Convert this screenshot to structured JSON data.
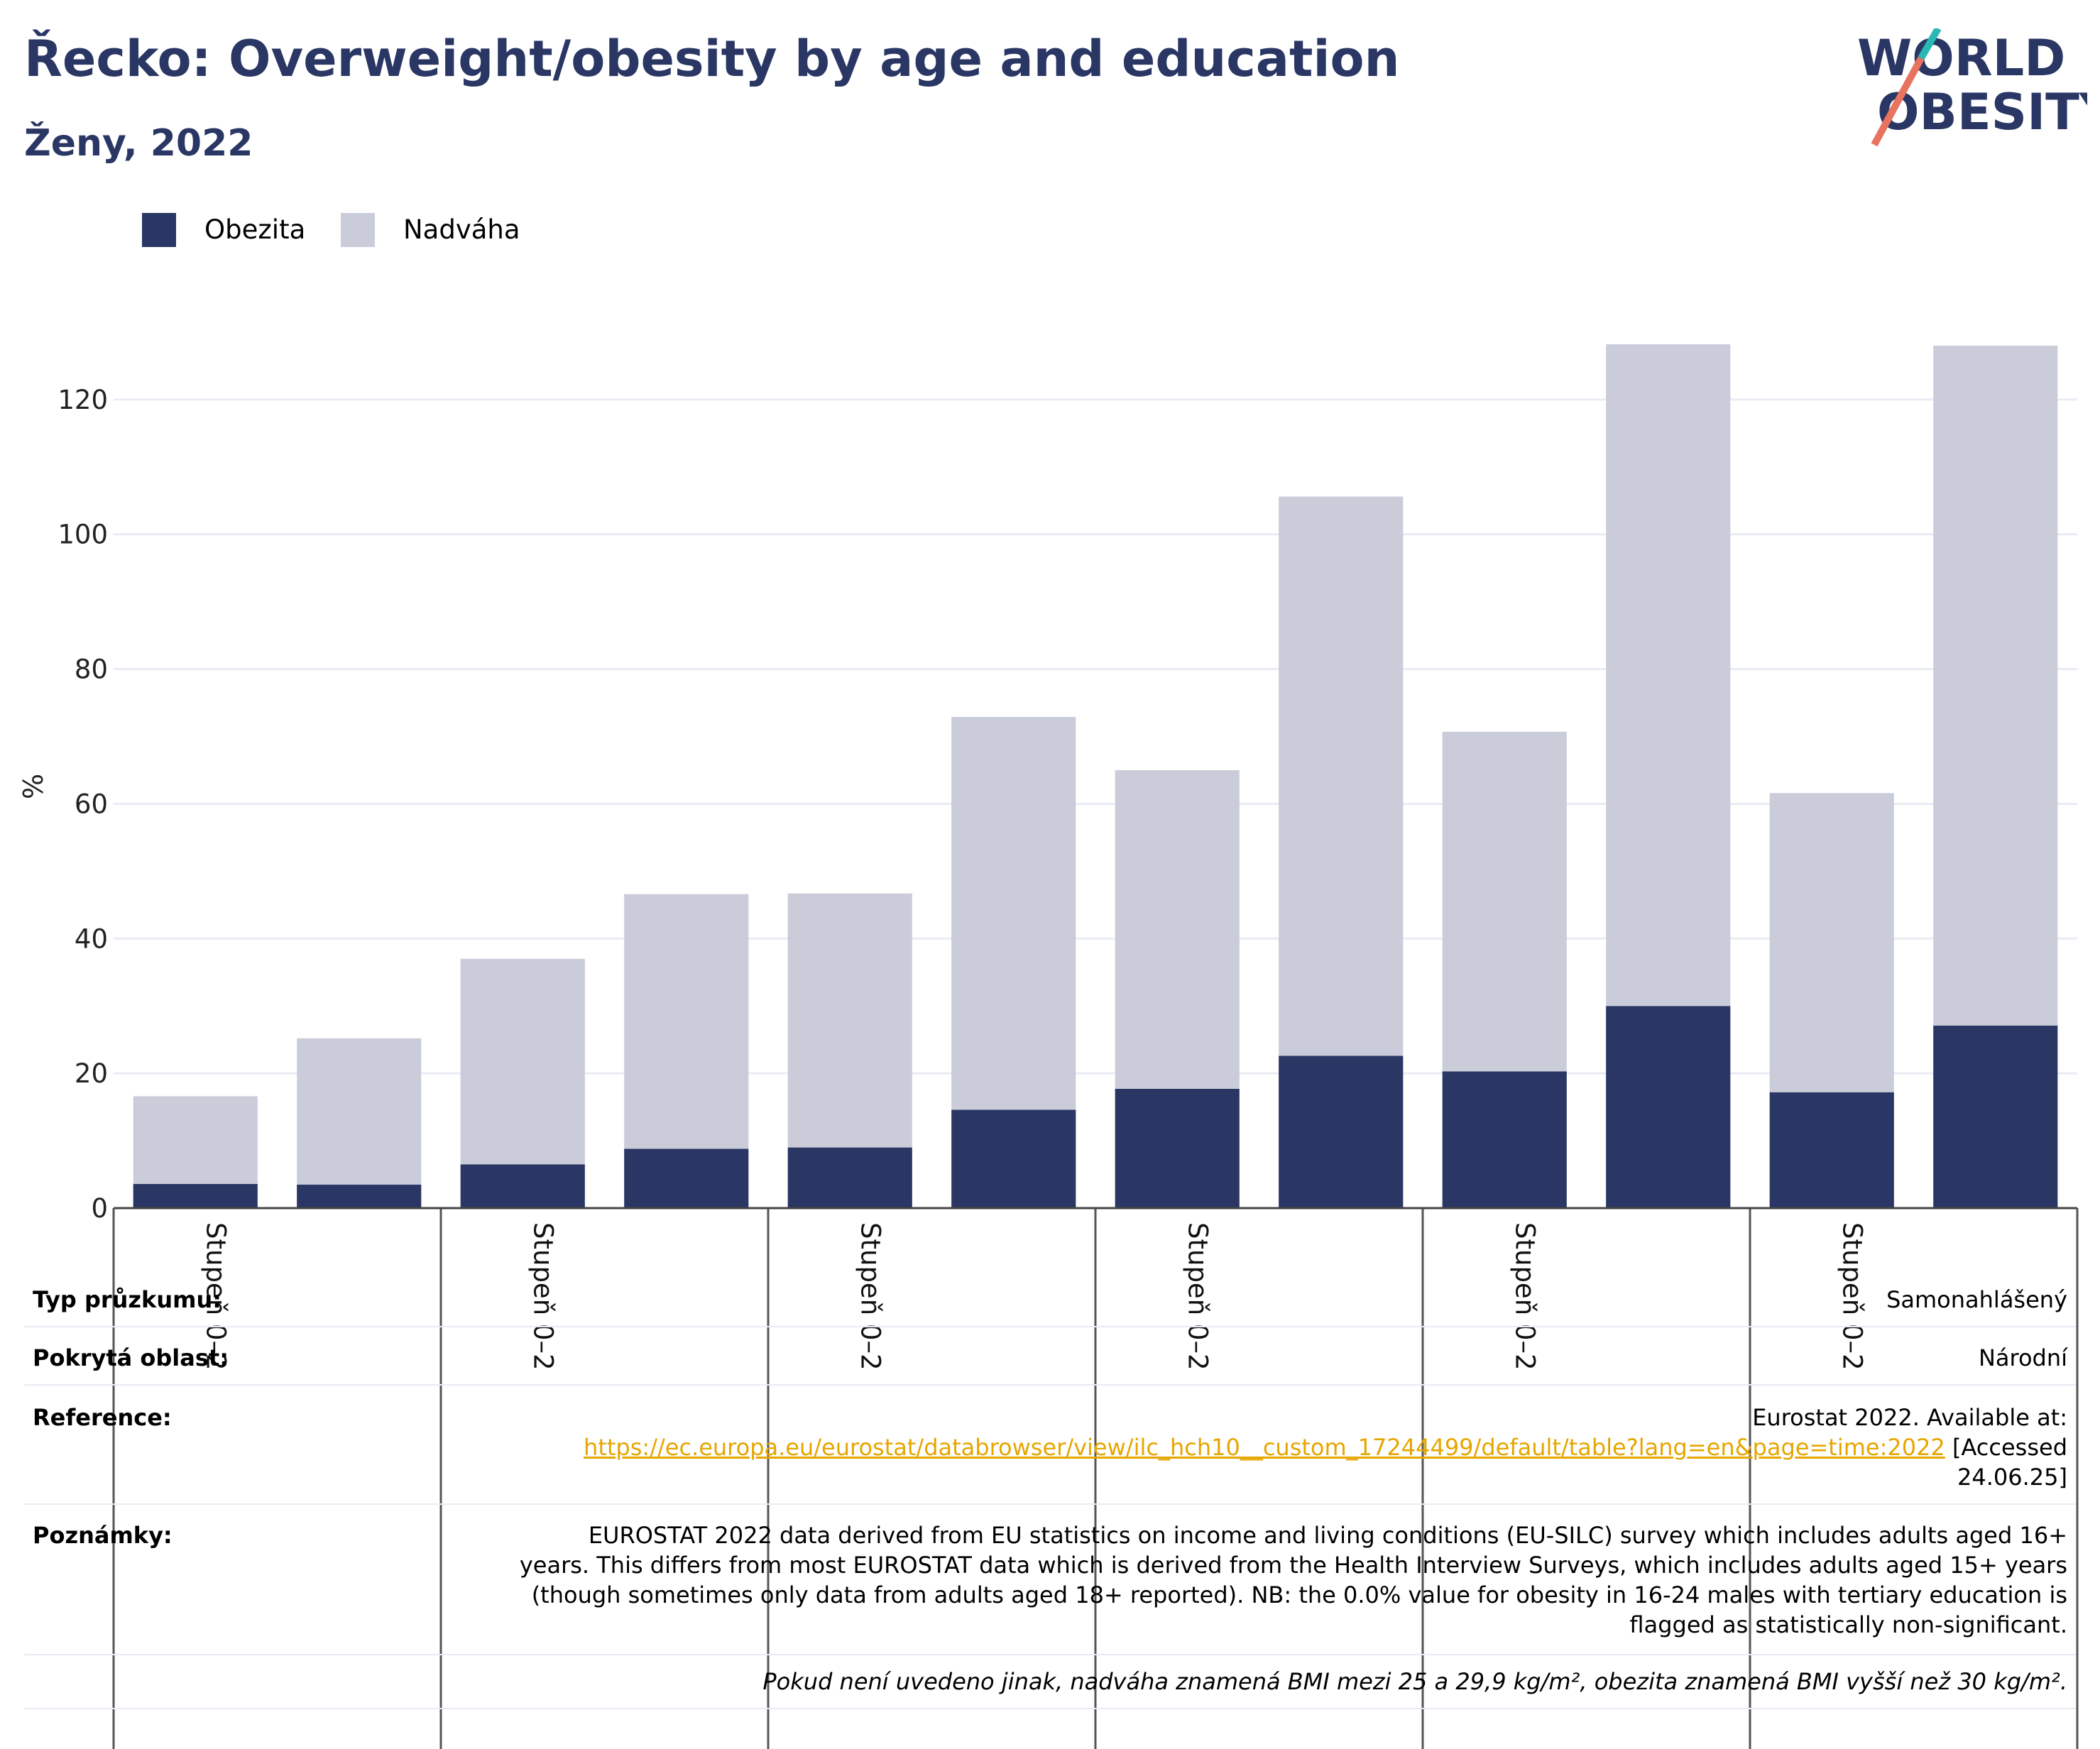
{
  "header": {
    "title": "Řecko: Overweight/obesity by age and education",
    "subtitle": "Ženy, 2022",
    "logo_line1": "WORLD",
    "logo_line2": "OBESITY"
  },
  "colors": {
    "obesity": "#2a3664",
    "overweight": "#cacdd9",
    "title": "#2a3664",
    "link": "#e6a600",
    "logo_teal": "#29b8b4",
    "logo_coral": "#e8735f"
  },
  "chart_data": {
    "type": "bar",
    "stacked": true,
    "ylabel": "%",
    "ylim": [
      0,
      134
    ],
    "yticks": [
      0,
      20,
      40,
      60,
      80,
      100,
      120
    ],
    "grid": true,
    "legend_position": "top-left",
    "group_labels": [
      "Stupeň 0–2",
      "Stupeň 0–2",
      "Stupeň 0–2",
      "Stupeň 0–2",
      "Stupeň 0–2",
      "Stupeň 0–2"
    ],
    "series": [
      {
        "name": "Obezita",
        "values": [
          3.6,
          3.5,
          6.5,
          8.8,
          9.0,
          14.6,
          17.7,
          22.6,
          20.3,
          30.0,
          17.2,
          27.1
        ]
      },
      {
        "name": "Nadváha",
        "values": [
          13.0,
          21.7,
          30.5,
          37.8,
          37.7,
          58.3,
          47.3,
          83.0,
          50.4,
          98.2,
          44.4,
          100.9
        ]
      }
    ]
  },
  "info": {
    "survey_type_label": "Typ průzkumu:",
    "survey_type_value": "Samonahlášený",
    "area_label": "Pokrytá oblast:",
    "area_value": "Národní",
    "reference_label": "Reference:",
    "reference_text1": "Eurostat 2022. Available at:",
    "reference_url": "https://ec.europa.eu/eurostat/databrowser/view/ilc_hch10__custom_17244499/default/table?lang=en&page=time:2022",
    "reference_text2": " [Accessed",
    "reference_text3": "24.06.25]",
    "notes_label": "Poznámky:",
    "notes_line1": "EUROSTAT 2022 data derived from EU statistics on income and living conditions (EU-SILC) survey which includes adults aged 16+",
    "notes_line2": "years. This differs from most EUROSTAT data which is derived from the Health Interview Surveys, which includes adults aged 15+ years",
    "notes_line3": "(though sometimes only data from adults aged 18+ reported). NB: the 0.0% value for obesity in 16-24 males with tertiary education is",
    "notes_line4": "flagged as statistically non-significant.",
    "footnote": "Pokud není uvedeno jinak, nadváha znamená BMI mezi 25 a 29,9 kg/m², obezita znamená BMI vyšší než 30 kg/m²."
  }
}
